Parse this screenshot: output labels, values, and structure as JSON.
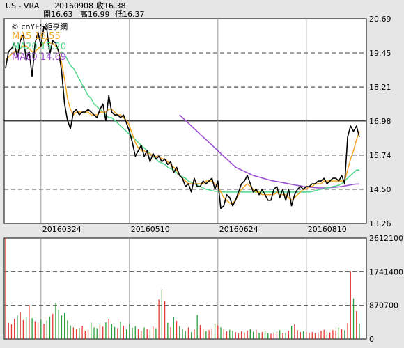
{
  "header": {
    "symbol": "US - VRA",
    "date": "20160908",
    "close": "收16.38",
    "open": "開16.63",
    "high": "高16.99",
    "low": "低16.37"
  },
  "chart_data": {
    "type": "line",
    "watermark": "© cnYES鉅亨網",
    "legend": [
      {
        "label": "MA5 16.55",
        "color": "#f5a623"
      },
      {
        "label": "MA20 15.20",
        "color": "#4fd68a"
      },
      {
        "label": "MA60 14.69",
        "color": "#9b4dd1"
      }
    ],
    "x_ticks": [
      "20160324",
      "20160510",
      "20160624",
      "20160810"
    ],
    "price_y_ticks": [
      "20.69",
      "19.45",
      "18.21",
      "16.98",
      "15.74",
      "14.50",
      "13.26"
    ],
    "volume_y_ticks": [
      "2612100",
      "1741400",
      "870700",
      "0"
    ],
    "price_ylim": [
      13.26,
      20.69
    ],
    "volume_ylim": [
      0,
      2612100
    ],
    "close": [
      18.9,
      19.5,
      19.6,
      19.8,
      19.3,
      19.9,
      20.1,
      19.2,
      19.5,
      18.6,
      19.8,
      20.2,
      19.7,
      20.4,
      20.3,
      19.4,
      19.9,
      19.8,
      19.5,
      18.8,
      17.6,
      17.0,
      16.7,
      17.3,
      17.4,
      17.2,
      17.3,
      17.3,
      17.4,
      17.3,
      17.2,
      17.1,
      17.4,
      17.6,
      17.0,
      17.9,
      17.3,
      17.2,
      17.2,
      17.1,
      17.2,
      16.9,
      16.6,
      16.2,
      15.7,
      15.9,
      16.1,
      15.7,
      15.9,
      15.5,
      15.8,
      15.6,
      15.7,
      15.5,
      15.6,
      15.4,
      15.5,
      15.1,
      15.3,
      15.0,
      14.9,
      14.6,
      14.7,
      14.4,
      14.9,
      14.6,
      14.6,
      14.8,
      14.7,
      14.8,
      14.9,
      14.5,
      14.8,
      13.8,
      13.9,
      14.3,
      14.2,
      13.9,
      14.1,
      14.4,
      14.7,
      14.8,
      15.0,
      14.7,
      14.4,
      14.5,
      14.3,
      14.5,
      14.3,
      14.1,
      14.1,
      14.5,
      14.6,
      14.2,
      14.5,
      14.1,
      14.5,
      13.9,
      14.3,
      14.5,
      14.6,
      14.5,
      14.6,
      14.6,
      14.7,
      14.7,
      14.8,
      14.8,
      14.9,
      14.7,
      14.8,
      14.9,
      14.9,
      14.8,
      15.0,
      14.7,
      16.4,
      16.8,
      16.6,
      16.8,
      16.4
    ],
    "ma5": [
      19.2,
      19.3,
      19.4,
      19.5,
      19.5,
      19.6,
      19.7,
      19.7,
      19.6,
      19.5,
      19.5,
      19.6,
      19.7,
      19.8,
      20.0,
      19.8,
      19.8,
      19.7,
      19.5,
      19.1,
      18.5,
      17.8,
      17.4,
      17.2,
      17.3,
      17.3,
      17.3,
      17.3,
      17.3,
      17.2,
      17.2,
      17.2,
      17.3,
      17.3,
      17.3,
      17.4,
      17.4,
      17.3,
      17.2,
      17.2,
      17.1,
      17.0,
      16.8,
      16.5,
      16.2,
      16.0,
      15.9,
      15.9,
      15.8,
      15.8,
      15.7,
      15.7,
      15.7,
      15.6,
      15.6,
      15.5,
      15.4,
      15.3,
      15.2,
      15.0,
      14.9,
      14.8,
      14.7,
      14.7,
      14.7,
      14.7,
      14.7,
      14.7,
      14.8,
      14.8,
      14.8,
      14.7,
      14.6,
      14.4,
      14.2,
      14.1,
      14.0,
      14.0,
      14.1,
      14.3,
      14.5,
      14.6,
      14.7,
      14.6,
      14.5,
      14.4,
      14.4,
      14.3,
      14.3,
      14.3,
      14.3,
      14.3,
      14.4,
      14.3,
      14.3,
      14.3,
      14.2,
      14.1,
      14.2,
      14.3,
      14.4,
      14.5,
      14.5,
      14.6,
      14.6,
      14.7,
      14.7,
      14.7,
      14.8,
      14.8,
      14.8,
      14.8,
      14.8,
      14.8,
      14.8,
      14.8,
      15.2,
      15.6,
      15.9,
      16.3,
      16.6
    ],
    "ma20": [
      null,
      null,
      null,
      null,
      null,
      null,
      null,
      null,
      null,
      null,
      null,
      null,
      null,
      null,
      null,
      null,
      null,
      null,
      null,
      19.5,
      19.4,
      19.2,
      19.0,
      18.9,
      18.7,
      18.5,
      18.3,
      18.1,
      17.9,
      17.8,
      17.6,
      17.5,
      17.4,
      17.3,
      17.2,
      17.1,
      17.1,
      17.0,
      16.9,
      16.8,
      16.7,
      16.6,
      16.5,
      16.4,
      16.3,
      16.2,
      16.1,
      16.0,
      15.9,
      15.8,
      15.7,
      15.6,
      15.5,
      15.45,
      15.4,
      15.3,
      15.25,
      15.2,
      15.1,
      15.0,
      14.95,
      14.9,
      14.8,
      14.75,
      14.7,
      14.65,
      14.6,
      14.55,
      14.5,
      14.48,
      14.45,
      14.43,
      14.42,
      14.41,
      14.4,
      14.4,
      14.4,
      14.4,
      14.4,
      14.4,
      14.4,
      14.4,
      14.4,
      14.4,
      14.4,
      14.4,
      14.4,
      14.4,
      14.4,
      14.4,
      14.4,
      14.4,
      14.4,
      14.4,
      14.4,
      14.4,
      14.4,
      14.4,
      14.4,
      14.4,
      14.4,
      14.4,
      14.4,
      14.4,
      14.42,
      14.45,
      14.48,
      14.5,
      14.52,
      14.55,
      14.57,
      14.6,
      14.62,
      14.65,
      14.7,
      14.8,
      14.9,
      15.0,
      15.1,
      15.2,
      15.2
    ],
    "ma60": [
      null,
      null,
      null,
      null,
      null,
      null,
      null,
      null,
      null,
      null,
      null,
      null,
      null,
      null,
      null,
      null,
      null,
      null,
      null,
      null,
      null,
      null,
      null,
      null,
      null,
      null,
      null,
      null,
      null,
      null,
      null,
      null,
      null,
      null,
      null,
      null,
      null,
      null,
      null,
      null,
      null,
      null,
      null,
      null,
      null,
      null,
      null,
      null,
      null,
      null,
      null,
      null,
      null,
      null,
      null,
      null,
      null,
      null,
      null,
      17.2,
      17.1,
      17.0,
      16.9,
      16.8,
      16.7,
      16.6,
      16.5,
      16.4,
      16.3,
      16.2,
      16.1,
      16.0,
      15.9,
      15.8,
      15.7,
      15.6,
      15.5,
      15.4,
      15.3,
      15.25,
      15.2,
      15.15,
      15.1,
      15.05,
      15.0,
      14.97,
      14.94,
      14.91,
      14.88,
      14.85,
      14.82,
      14.8,
      14.78,
      14.76,
      14.74,
      14.72,
      14.7,
      14.68,
      14.66,
      14.64,
      14.62,
      14.6,
      14.59,
      14.58,
      14.57,
      14.56,
      14.55,
      14.55,
      14.55,
      14.55,
      14.56,
      14.57,
      14.58,
      14.59,
      14.6,
      14.62,
      14.64,
      14.66,
      14.68,
      14.69,
      14.69
    ],
    "volume": [
      2612100,
      420000,
      380000,
      520000,
      610000,
      700000,
      490000,
      560000,
      880000,
      540000,
      460000,
      420000,
      500000,
      390000,
      480000,
      580000,
      650000,
      920000,
      760000,
      610000,
      680000,
      480000,
      350000,
      300000,
      260000,
      290000,
      340000,
      210000,
      240000,
      420000,
      300000,
      280000,
      380000,
      320000,
      430000,
      520000,
      390000,
      310000,
      280000,
      450000,
      340000,
      250000,
      380000,
      290000,
      330000,
      260000,
      210000,
      300000,
      260000,
      240000,
      320000,
      280000,
      1020000,
      1290000,
      980000,
      420000,
      310000,
      560000,
      470000,
      330000,
      260000,
      210000,
      300000,
      180000,
      250000,
      620000,
      360000,
      270000,
      200000,
      230000,
      280000,
      400000,
      350000,
      300000,
      270000,
      200000,
      240000,
      210000,
      180000,
      150000,
      200000,
      170000,
      220000,
      250000,
      190000,
      240000,
      160000,
      180000,
      200000,
      150000,
      140000,
      170000,
      190000,
      230000,
      150000,
      160000,
      210000,
      340000,
      380000,
      230000,
      180000,
      200000,
      190000,
      160000,
      180000,
      150000,
      170000,
      210000,
      240000,
      190000,
      170000,
      230000,
      220000,
      300000,
      260000,
      230000,
      410000,
      1740000,
      1050000,
      720000,
      400000
    ]
  }
}
